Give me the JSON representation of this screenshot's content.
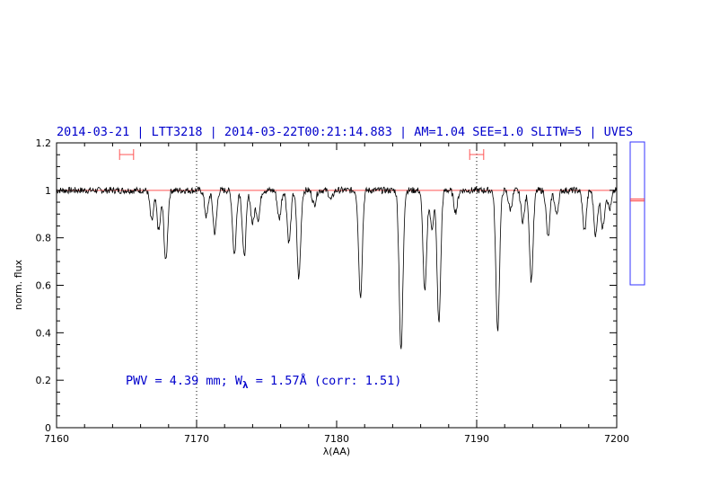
{
  "chart_data": {
    "type": "line",
    "title": "2014-03-21 | LTT3218 | 2014-03-22T00:21:14.883 | AM=1.04  SEE=1.0  SLITW=5 | UVES",
    "xlabel": "λ(AA)",
    "ylabel": "norm. flux",
    "xlim": [
      7160,
      7200
    ],
    "ylim": [
      0,
      1.2
    ],
    "x_ticks": [
      "7160",
      "7170",
      "7180",
      "7190",
      "7200"
    ],
    "y_ticks": [
      "0",
      "0.2",
      "0.4",
      "0.6",
      "0.8",
      "1",
      "1.2"
    ],
    "vertical_dotted_lines_x": [
      7170,
      7190
    ],
    "continuum_level": 1.0,
    "continuum_color": "#ff5555",
    "spectrum_color": "#000000",
    "absorption_lines": [
      [
        7166.8,
        0.87
      ],
      [
        7167.3,
        0.83
      ],
      [
        7167.8,
        0.7
      ],
      [
        7170.7,
        0.89
      ],
      [
        7171.3,
        0.82
      ],
      [
        7172.7,
        0.73
      ],
      [
        7173.4,
        0.72
      ],
      [
        7174.0,
        0.86
      ],
      [
        7174.4,
        0.88
      ],
      [
        7175.9,
        0.88
      ],
      [
        7176.6,
        0.78
      ],
      [
        7177.3,
        0.63
      ],
      [
        7178.4,
        0.94
      ],
      [
        7179.6,
        0.96
      ],
      [
        7181.7,
        0.55
      ],
      [
        7184.6,
        0.32
      ],
      [
        7186.3,
        0.57
      ],
      [
        7186.8,
        0.84
      ],
      [
        7187.3,
        0.44
      ],
      [
        7188.5,
        0.91
      ],
      [
        7191.5,
        0.41
      ],
      [
        7192.4,
        0.92
      ],
      [
        7193.3,
        0.87
      ],
      [
        7193.9,
        0.62
      ],
      [
        7195.1,
        0.8
      ],
      [
        7195.7,
        0.9
      ],
      [
        7197.7,
        0.83
      ],
      [
        7198.5,
        0.81
      ],
      [
        7199.0,
        0.84
      ],
      [
        7199.5,
        0.92
      ]
    ],
    "shaded_ranges": [
      [
        7164.5,
        7165.5
      ],
      [
        7189.5,
        7190.5
      ]
    ],
    "range_color": "#ff5555",
    "annotation": {
      "pwv_prefix": "PWV = 4.39 mm; W",
      "w_subscript": "λ",
      "pwv_suffix": " = 1.57Å (corr: 1.51)"
    },
    "side_indicator": {
      "level": 0.6,
      "box_color": "#3333ff",
      "line_color": "#ff3333"
    },
    "legend": "none",
    "grid": false
  }
}
